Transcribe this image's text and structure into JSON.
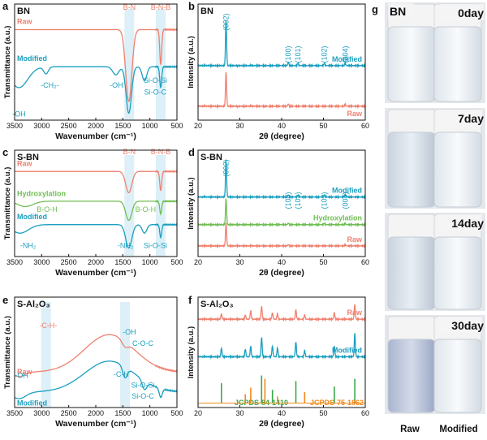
{
  "colors": {
    "raw": "#f0806f",
    "modified": "#1a9fc0",
    "hydroxylation": "#6fbe54",
    "jcpds1": "#3aa84a",
    "jcpds2": "#f08a1e",
    "band": "#cfe8f3"
  },
  "chart_data": [
    {
      "panel": "a",
      "type": "line",
      "title": "BN",
      "xlabel": "Wavenumber (cm⁻¹)",
      "ylabel": "Transmittance (a.u.)",
      "xlim": [
        3500,
        500
      ],
      "xticks": [
        3500,
        3000,
        2500,
        2000,
        1500,
        1000,
        500
      ],
      "series": [
        {
          "name": "Raw",
          "label": "Raw",
          "color": "#f0806f",
          "offset": 0.78,
          "dips": [
            [
              1390,
              0.62,
              80
            ],
            [
              800,
              0.3,
              25
            ]
          ]
        },
        {
          "name": "Modified",
          "label": "Modified",
          "color": "#1a9fc0",
          "offset": 0.46,
          "dips": [
            [
              3420,
              0.18,
              230
            ],
            [
              2920,
              0.06,
              60
            ],
            [
              1630,
              0.07,
              80
            ],
            [
              1390,
              0.4,
              70
            ],
            [
              1100,
              0.12,
              60
            ],
            [
              800,
              0.18,
              25
            ]
          ]
        }
      ],
      "bands": [
        1380,
        800
      ],
      "annotations": [
        {
          "text": "B-N",
          "x": 1380,
          "y": 0.95,
          "color": "#f0806f"
        },
        {
          "text": "B-N-B",
          "x": 800,
          "y": 0.95,
          "color": "#f0806f"
        },
        {
          "text": "-OH",
          "x": 3420,
          "y": 0.03,
          "color": "#1a9fc0"
        },
        {
          "text": "-CH₂-",
          "x": 2850,
          "y": 0.28,
          "color": "#1a9fc0"
        },
        {
          "text": "-OH",
          "x": 1620,
          "y": 0.28,
          "color": "#1a9fc0"
        },
        {
          "text": "Si-O-Si",
          "x": 900,
          "y": 0.32,
          "color": "#1a9fc0"
        },
        {
          "text": "Si-O-C",
          "x": 900,
          "y": 0.22,
          "color": "#1a9fc0"
        }
      ]
    },
    {
      "panel": "b",
      "type": "line",
      "title": "BN",
      "xlabel": "2θ (degree)",
      "ylabel": "Intensity (a.u.)",
      "xlim": [
        20,
        60
      ],
      "xticks": [
        20,
        30,
        40,
        50,
        60
      ],
      "series": [
        {
          "name": "Modified",
          "label": "Modified",
          "color": "#1a9fc0",
          "offset": 0.47,
          "peaks": [
            [
              26.7,
              0.4
            ],
            [
              41.6,
              0.03
            ],
            [
              43.9,
              0.02
            ],
            [
              50.2,
              0.02
            ],
            [
              55.2,
              0.02
            ]
          ]
        },
        {
          "name": "Raw",
          "label": "Raw",
          "color": "#f0806f",
          "offset": 0.12,
          "peaks": [
            [
              26.7,
              0.3
            ],
            [
              41.6,
              0.02
            ],
            [
              55.2,
              0.015
            ]
          ]
        }
      ],
      "peak_labels": [
        {
          "text": "(002)",
          "x": 26.7
        },
        {
          "text": "(100)",
          "x": 41.6
        },
        {
          "text": "(101)",
          "x": 43.9
        },
        {
          "text": "(102)",
          "x": 50.2
        },
        {
          "text": "(004)",
          "x": 55.2
        }
      ]
    },
    {
      "panel": "c",
      "type": "line",
      "title": "S-BN",
      "xlabel": "Wavenumber (cm⁻¹)",
      "ylabel": "Transmittance (a.u.)",
      "xlim": [
        3500,
        500
      ],
      "xticks": [
        3500,
        3000,
        2500,
        2000,
        1500,
        1000,
        500
      ],
      "series": [
        {
          "name": "Raw",
          "label": "Raw",
          "color": "#f0806f",
          "offset": 0.8,
          "dips": [
            [
              1390,
              0.2,
              80
            ],
            [
              800,
              0.18,
              25
            ]
          ]
        },
        {
          "name": "Hydroxylation",
          "label": "Hydroxylation",
          "color": "#6fbe54",
          "offset": 0.52,
          "dips": [
            [
              3300,
              0.05,
              200
            ],
            [
              1390,
              0.18,
              80
            ],
            [
              800,
              0.12,
              25
            ]
          ]
        },
        {
          "name": "Modified",
          "label": "Modified",
          "color": "#1a9fc0",
          "offset": 0.3,
          "dips": [
            [
              3400,
              0.08,
              220
            ],
            [
              1390,
              0.22,
              80
            ],
            [
              1100,
              0.08,
              60
            ],
            [
              800,
              0.12,
              25
            ]
          ]
        }
      ],
      "bands": [
        1380,
        800
      ],
      "annotations": [
        {
          "text": "B-N",
          "x": 1380,
          "y": 0.96,
          "color": "#f0806f"
        },
        {
          "text": "B-N-B",
          "x": 800,
          "y": 0.96,
          "color": "#f0806f"
        },
        {
          "text": "B-O-H",
          "x": 2900,
          "y": 0.42,
          "color": "#6fbe54"
        },
        {
          "text": "B-O-H",
          "x": 1080,
          "y": 0.42,
          "color": "#6fbe54"
        },
        {
          "text": "-NH₂",
          "x": 3250,
          "y": 0.08,
          "color": "#1a9fc0"
        },
        {
          "text": "-NH₂",
          "x": 1450,
          "y": 0.08,
          "color": "#1a9fc0"
        },
        {
          "text": "Si-O-Si",
          "x": 900,
          "y": 0.08,
          "color": "#1a9fc0"
        }
      ]
    },
    {
      "panel": "d",
      "type": "line",
      "title": "S-BN",
      "xlabel": "2θ (degree)",
      "ylabel": "Intensity (a.u.)",
      "xlim": [
        20,
        60
      ],
      "xticks": [
        20,
        30,
        40,
        50,
        60
      ],
      "series": [
        {
          "name": "Modified",
          "label": "Modified",
          "color": "#1a9fc0",
          "offset": 0.56,
          "peaks": [
            [
              26.7,
              0.36
            ],
            [
              41.6,
              0.02
            ],
            [
              43.9,
              0.02
            ],
            [
              50.2,
              0.02
            ],
            [
              55.2,
              0.02
            ]
          ]
        },
        {
          "name": "Hydroxylation",
          "label": "Hydroxylation",
          "color": "#6fbe54",
          "offset": 0.3,
          "peaks": [
            [
              26.7,
              0.25
            ],
            [
              41.6,
              0.015
            ],
            [
              50.2,
              0.012
            ],
            [
              55.2,
              0.01
            ]
          ]
        },
        {
          "name": "Raw",
          "label": "Raw",
          "color": "#f0806f",
          "offset": 0.1,
          "peaks": [
            [
              26.7,
              0.22
            ],
            [
              41.6,
              0.012
            ],
            [
              55.2,
              0.01
            ]
          ]
        }
      ],
      "peak_labels": [
        {
          "text": "(002)",
          "x": 26.7
        },
        {
          "text": "(100)",
          "x": 41.6
        },
        {
          "text": "(101)",
          "x": 43.9
        },
        {
          "text": "(102)",
          "x": 50.2
        },
        {
          "text": "(004)",
          "x": 55.2
        }
      ]
    },
    {
      "panel": "e",
      "type": "line",
      "title": "S-Al₂O₃",
      "xlabel": "Wavenumber (cm⁻¹)",
      "ylabel": "Transmittance (a.u.)",
      "xlim": [
        3500,
        500
      ],
      "xticks": [
        3500,
        3000,
        2500,
        2000,
        1500,
        1000,
        500
      ],
      "series": [
        {
          "name": "Raw",
          "label": "Raw",
          "color": "#f0806f",
          "broad": true,
          "offset": 0.34,
          "bump": 0.34,
          "dips": [
            [
              3420,
              0.04,
              150
            ],
            [
              1460,
              0.05,
              80
            ]
          ]
        },
        {
          "name": "Modified",
          "label": "Modified",
          "color": "#1a9fc0",
          "broad": true,
          "offset": 0.16,
          "bump": 0.28,
          "dips": [
            [
              3420,
              0.06,
              180
            ],
            [
              1460,
              0.1,
              60
            ],
            [
              1100,
              0.08,
              60
            ],
            [
              800,
              0.08,
              40
            ]
          ]
        }
      ],
      "bands": [
        2920,
        1460
      ],
      "annotations": [
        {
          "text": "-C-H-",
          "x": 2880,
          "y": 0.72,
          "color": "#f0806f"
        },
        {
          "text": "-OH",
          "x": 1380,
          "y": 0.66,
          "color": "#1a9fc0"
        },
        {
          "text": "C-O-C",
          "x": 1130,
          "y": 0.56,
          "color": "#1a9fc0"
        },
        {
          "text": "-OH",
          "x": 3370,
          "y": 0.27,
          "color": "#1a9fc0"
        },
        {
          "text": "-C-H",
          "x": 1530,
          "y": 0.28,
          "color": "#1a9fc0"
        },
        {
          "text": "Si-O-Si",
          "x": 1130,
          "y": 0.18,
          "color": "#1a9fc0"
        },
        {
          "text": "Si-O-C",
          "x": 1130,
          "y": 0.08,
          "color": "#1a9fc0"
        }
      ]
    },
    {
      "panel": "f",
      "type": "line",
      "title": "S-Al₂O₃",
      "xlabel": "2θ (degree)",
      "ylabel": "Intensity (a.u.)",
      "xlim": [
        20,
        60
      ],
      "xticks": [
        20,
        30,
        40,
        50,
        60
      ],
      "series": [
        {
          "name": "Raw",
          "label": "Raw",
          "color": "#f0806f",
          "offset": 0.8,
          "peaks": [
            [
              25.6,
              0.05
            ],
            [
              31.3,
              0.04
            ],
            [
              32.6,
              0.08
            ],
            [
              35.2,
              0.12
            ],
            [
              37.8,
              0.06
            ],
            [
              39.0,
              0.05
            ],
            [
              43.4,
              0.09
            ],
            [
              45.5,
              0.04
            ],
            [
              52.6,
              0.06
            ],
            [
              57.5,
              0.14
            ]
          ]
        },
        {
          "name": "Modified",
          "label": "Modified",
          "color": "#1a9fc0",
          "offset": 0.46,
          "peaks": [
            [
              25.6,
              0.08
            ],
            [
              31.3,
              0.07
            ],
            [
              32.6,
              0.1
            ],
            [
              35.2,
              0.18
            ],
            [
              37.8,
              0.1
            ],
            [
              39.0,
              0.08
            ],
            [
              43.4,
              0.14
            ],
            [
              45.5,
              0.06
            ],
            [
              52.6,
              0.1
            ],
            [
              57.5,
              0.22
            ]
          ]
        }
      ],
      "reference": [
        {
          "name": "JCPDS-84-1410",
          "color": "#3aa84a",
          "lines": [
            [
              25.6,
              0.18
            ],
            [
              35.2,
              0.25
            ],
            [
              37.8,
              0.12
            ],
            [
              43.4,
              0.2
            ],
            [
              52.6,
              0.15
            ],
            [
              57.5,
              0.22
            ]
          ]
        },
        {
          "name": "JCPDS-75-1862",
          "color": "#f08a1e",
          "lines": [
            [
              31.3,
              0.08
            ],
            [
              32.6,
              0.14
            ],
            [
              36.0,
              0.22
            ],
            [
              39.0,
              0.06
            ],
            [
              45.5,
              0.1
            ]
          ]
        }
      ]
    }
  ],
  "panel_g": {
    "label": "g",
    "bottle_labels": [
      "BN",
      "Raw",
      "Modified"
    ],
    "rows": [
      {
        "day": "0day"
      },
      {
        "day": "7day"
      },
      {
        "day": "14day"
      },
      {
        "day": "30day"
      }
    ]
  }
}
